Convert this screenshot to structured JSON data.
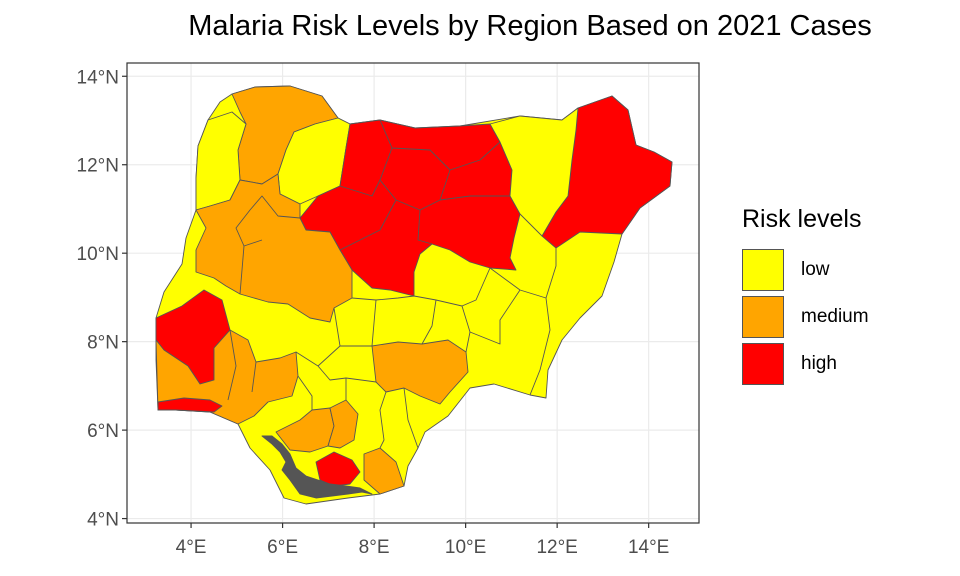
{
  "title": "Malaria Risk Levels by Region Based on 2021 Cases",
  "legend": {
    "title": "Risk levels",
    "items": [
      {
        "label": "low",
        "color": "#FFFF00"
      },
      {
        "label": "medium",
        "color": "#FFA500"
      },
      {
        "label": "high",
        "color": "#FF0000"
      }
    ]
  },
  "axes": {
    "x_ticks": [
      {
        "value": 4,
        "label": "4°E"
      },
      {
        "value": 6,
        "label": "6°E"
      },
      {
        "value": 8,
        "label": "8°E"
      },
      {
        "value": 10,
        "label": "10°E"
      },
      {
        "value": 12,
        "label": "12°E"
      },
      {
        "value": 14,
        "label": "14°E"
      }
    ],
    "y_ticks": [
      {
        "value": 4,
        "label": "4°N"
      },
      {
        "value": 6,
        "label": "6°N"
      },
      {
        "value": 8,
        "label": "8°N"
      },
      {
        "value": 10,
        "label": "10°N"
      },
      {
        "value": 12,
        "label": "12°N"
      },
      {
        "value": 14,
        "label": "14°N"
      }
    ],
    "xlim": [
      2.6,
      15.1
    ],
    "ylim": [
      3.9,
      14.3
    ],
    "grid": true
  },
  "colors": {
    "border": "#555555",
    "grid": "#ebebeb",
    "panel_border": "#333333"
  }
}
